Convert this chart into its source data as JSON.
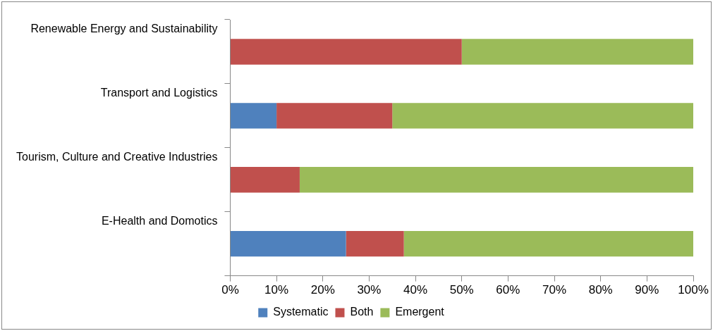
{
  "chart_data": {
    "type": "bar",
    "orientation": "horizontal",
    "stacked": true,
    "categories": [
      "Renewable Energy and Sustainability",
      "Transport and Logistics",
      "Tourism, Culture and Creative Industries",
      "E-Health and Domotics"
    ],
    "series": [
      {
        "name": "Systematic",
        "color": "#4f81bd",
        "values": [
          0,
          10,
          0,
          25
        ]
      },
      {
        "name": "Both",
        "color": "#c0504d",
        "values": [
          50,
          25,
          15,
          12.5
        ]
      },
      {
        "name": "Emergent",
        "color": "#9bbb59",
        "values": [
          50,
          65,
          85,
          62.5
        ]
      }
    ],
    "xlim": [
      0,
      100
    ],
    "xticks": [
      {
        "value": 0,
        "label": "0%"
      },
      {
        "value": 10,
        "label": "10%"
      },
      {
        "value": 20,
        "label": "20%"
      },
      {
        "value": 30,
        "label": "30%"
      },
      {
        "value": 40,
        "label": "40%"
      },
      {
        "value": 50,
        "label": "50%"
      },
      {
        "value": 60,
        "label": "60%"
      },
      {
        "value": 70,
        "label": "70%"
      },
      {
        "value": 80,
        "label": "80%"
      },
      {
        "value": 90,
        "label": "90%"
      },
      {
        "value": 100,
        "label": "100%"
      }
    ],
    "grid": false,
    "legend": "bottom"
  }
}
